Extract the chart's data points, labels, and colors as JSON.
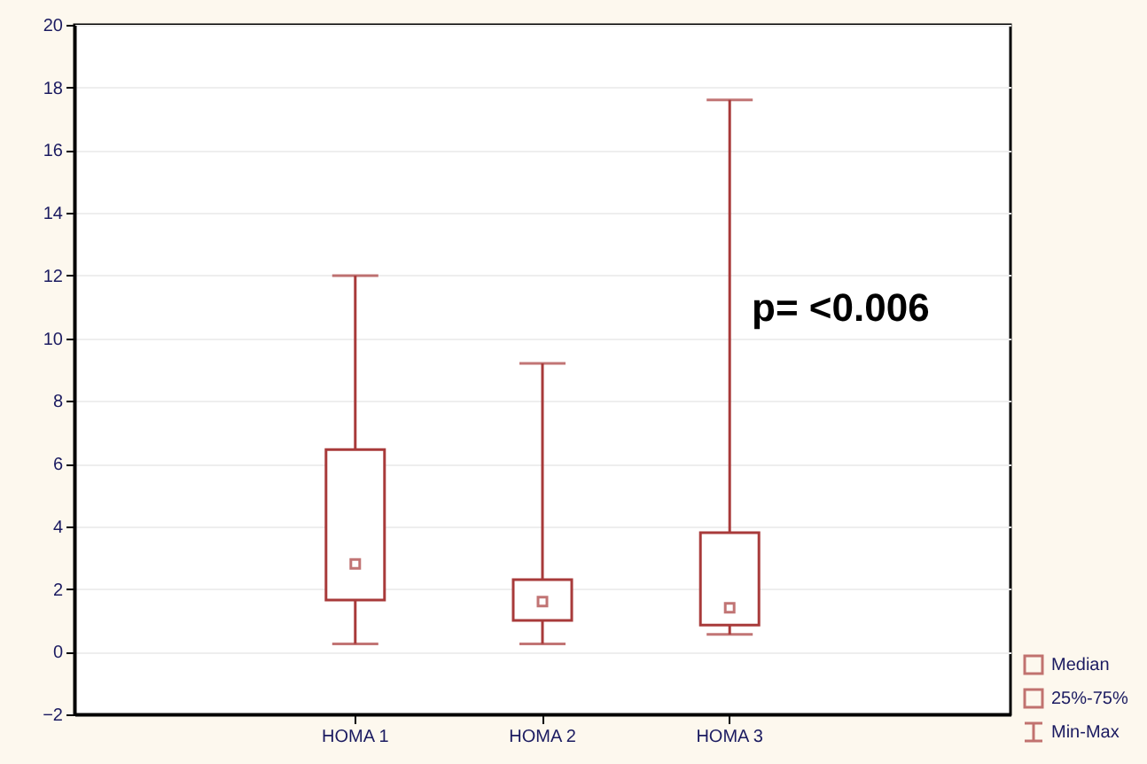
{
  "chart_data": {
    "type": "box",
    "categories": [
      "HOMA 1",
      "HOMA 2",
      "HOMA 3"
    ],
    "boxes": [
      {
        "low": 0.25,
        "q1": 1.65,
        "median": 2.8,
        "q3": 6.45,
        "high": 12
      },
      {
        "low": 0.25,
        "q1": 1.0,
        "median": 1.6,
        "q3": 2.3,
        "high": 9.2
      },
      {
        "low": 0.55,
        "q1": 0.85,
        "median": 1.4,
        "q3": 3.8,
        "high": 17.6
      }
    ],
    "color": "#a83a3a",
    "ylim": [
      -2,
      20
    ],
    "yticks": [
      -2,
      0,
      2,
      4,
      6,
      8,
      10,
      12,
      14,
      16,
      18,
      20
    ],
    "grid": "y",
    "annotations": [
      "p= <0.006",
      "Median",
      "25%-75%",
      "Min-Max"
    ]
  }
}
